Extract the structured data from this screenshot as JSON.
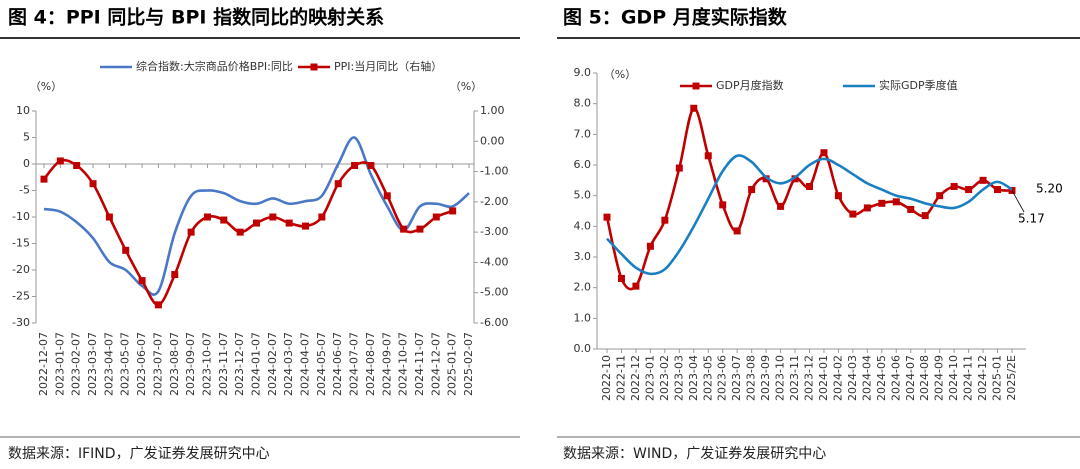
{
  "chart_data": [
    {
      "type": "line",
      "title": "图 4：PPI 同比与 BPI 指数同比的映射关系",
      "y_label": "（%）",
      "y2_label": "（%）",
      "source": "数据来源：IFIND，广发证券发展研究中心",
      "categories": [
        "2022-12-07",
        "2023-01-07",
        "2023-02-07",
        "2023-03-07",
        "2023-04-07",
        "2023-05-07",
        "2023-06-07",
        "2023-07-07",
        "2023-08-07",
        "2023-09-07",
        "2023-10-07",
        "2023-11-07",
        "2023-12-07",
        "2024-01-07",
        "2024-02-07",
        "2024-03-07",
        "2024-04-07",
        "2024-05-07",
        "2024-06-07",
        "2024-07-07",
        "2024-08-07",
        "2024-09-07",
        "2024-10-07",
        "2024-11-07",
        "2024-12-07",
        "2025-01-07",
        "2025-02-07"
      ],
      "ylim": [
        -30,
        10
      ],
      "yticks": [
        -30,
        -25,
        -20,
        -15,
        -10,
        -5,
        0,
        5,
        10
      ],
      "y2lim": [
        -6,
        1
      ],
      "y2ticks": [
        {
          "value": -6,
          "label": "-6.00"
        },
        {
          "value": -5,
          "label": "-5.00"
        },
        {
          "value": -4,
          "label": "-4.00"
        },
        {
          "value": -3,
          "label": "-3.00"
        },
        {
          "value": -2,
          "label": "-2.00"
        },
        {
          "value": -1,
          "label": "-1.00"
        },
        {
          "value": 0,
          "label": "0.00"
        },
        {
          "value": 1,
          "label": "1.00"
        }
      ],
      "series": [
        {
          "name": "综合指数:大宗商品价格BPI:同比",
          "color": "#4a78c6",
          "axis": "y",
          "markers": false,
          "smooth": true,
          "values": [
            -8.5,
            -9,
            -11,
            -14,
            -18.5,
            -20,
            -23,
            -24,
            -13,
            -6,
            -5,
            -5.5,
            -7,
            -7.5,
            -6.5,
            -7.5,
            -7,
            -6,
            0,
            5,
            -2,
            -8,
            -12.5,
            -8,
            -7.5,
            -8,
            -5.5
          ]
        },
        {
          "name": "PPI:当月同比（右轴）",
          "color": "#c00000",
          "axis": "y2",
          "markers": true,
          "smooth": true,
          "values": [
            -1.25,
            -0.65,
            -0.8,
            -1.4,
            -2.5,
            -3.6,
            -4.6,
            -5.4,
            -4.4,
            -3.0,
            -2.5,
            -2.6,
            -3.0,
            -2.7,
            -2.5,
            -2.7,
            -2.8,
            -2.5,
            -1.4,
            -0.8,
            -0.8,
            -1.8,
            -2.9,
            -2.9,
            -2.5,
            -2.3,
            null
          ]
        }
      ]
    },
    {
      "type": "line",
      "title": "图 5：GDP 月度实际指数",
      "y_label": "（%）",
      "source": "数据来源：WIND，广发证券发展研究中心",
      "categories": [
        "2022-10",
        "2022-11",
        "2022-12",
        "2023-01",
        "2023-02",
        "2023-03",
        "2023-04",
        "2023-05",
        "2023-06",
        "2023-07",
        "2023-08",
        "2023-09",
        "2023-10",
        "2023-11",
        "2023-12",
        "2024-01",
        "2024-02",
        "2024-03",
        "2024-04",
        "2024-05",
        "2024-06",
        "2024-07",
        "2024-08",
        "2024-09",
        "2024-10",
        "2024-11",
        "2024-12",
        "2025-01",
        "2025/2E"
      ],
      "ylim": [
        0,
        9
      ],
      "yticks": [
        {
          "value": 0,
          "label": "0.0"
        },
        {
          "value": 1,
          "label": "1.0"
        },
        {
          "value": 2,
          "label": "2.0"
        },
        {
          "value": 3,
          "label": "3.0"
        },
        {
          "value": 4,
          "label": "4.0"
        },
        {
          "value": 5,
          "label": "5.0"
        },
        {
          "value": 6,
          "label": "6.0"
        },
        {
          "value": 7,
          "label": "7.0"
        },
        {
          "value": 8,
          "label": "8.0"
        },
        {
          "value": 9,
          "label": "9.0"
        }
      ],
      "annotations": [
        "5.20",
        "5.17"
      ],
      "series": [
        {
          "name": "GDP月度指数",
          "color": "#c00000",
          "axis": "y",
          "markers": true,
          "smooth": true,
          "values": [
            4.3,
            2.3,
            2.05,
            3.35,
            4.2,
            5.9,
            7.85,
            6.3,
            4.7,
            3.85,
            5.2,
            5.55,
            4.65,
            5.55,
            5.3,
            6.4,
            5.0,
            4.4,
            4.6,
            4.75,
            4.8,
            4.55,
            4.35,
            5.0,
            5.3,
            5.2,
            5.5,
            5.2,
            5.17
          ]
        },
        {
          "name": "实际GDP季度值",
          "color": "#1a7fc1",
          "axis": "y",
          "markers": false,
          "smooth": true,
          "values": [
            3.6,
            3.1,
            2.65,
            2.45,
            2.6,
            3.2,
            4.0,
            4.9,
            5.8,
            6.3,
            6.1,
            5.6,
            5.4,
            5.6,
            6.0,
            6.2,
            6.0,
            5.7,
            5.4,
            5.2,
            5.0,
            4.9,
            4.75,
            4.65,
            4.6,
            4.8,
            5.2,
            5.45,
            5.2
          ]
        }
      ]
    }
  ]
}
